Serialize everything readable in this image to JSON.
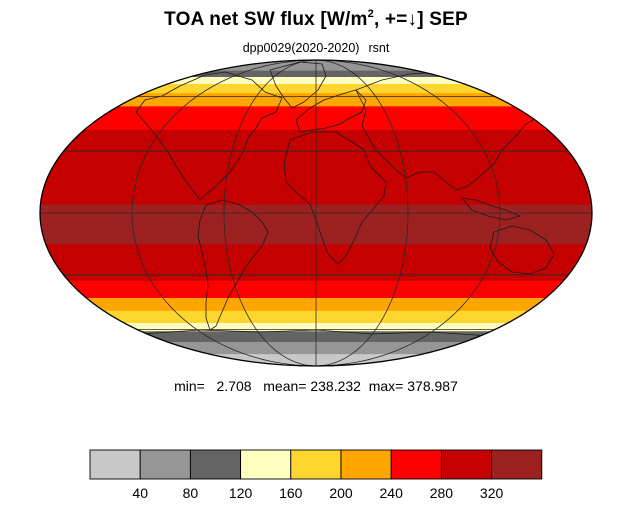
{
  "title": {
    "prefix": "TOA net SW flux [W/m",
    "exponent": "2",
    "middle": ", +=",
    "arrow": "↓",
    "suffix": "]  SEP"
  },
  "subtitle": {
    "run": "dpp0029(2020-2020)",
    "variable": "rsnt"
  },
  "stats": {
    "min_label": "min=",
    "min": "2.708",
    "mean_label": "mean=",
    "mean": "238.232",
    "max_label": "max=",
    "max": "378.987"
  },
  "map_data": {
    "projection": "mollweide",
    "central_longitude": 0,
    "graticule_longitudes": [
      -180,
      -120,
      -60,
      0,
      60,
      120,
      180
    ],
    "graticule_latitudes": [
      -60,
      -30,
      0,
      30,
      60
    ],
    "zonal_profile": [
      {
        "lat": 90,
        "value": 50
      },
      {
        "lat": 80,
        "value": 70
      },
      {
        "lat": 75,
        "value": 100
      },
      {
        "lat": 70,
        "value": 150
      },
      {
        "lat": 65,
        "value": 180
      },
      {
        "lat": 60,
        "value": 215
      },
      {
        "lat": 55,
        "value": 235
      },
      {
        "lat": 50,
        "value": 255
      },
      {
        "lat": 45,
        "value": 265
      },
      {
        "lat": 40,
        "value": 285
      },
      {
        "lat": 30,
        "value": 300
      },
      {
        "lat": 20,
        "value": 310
      },
      {
        "lat": 10,
        "value": 305
      },
      {
        "lat": 0,
        "value": 330
      },
      {
        "lat": -10,
        "value": 325
      },
      {
        "lat": -20,
        "value": 315
      },
      {
        "lat": -30,
        "value": 295
      },
      {
        "lat": -35,
        "value": 270
      },
      {
        "lat": -40,
        "value": 250
      },
      {
        "lat": -45,
        "value": 225
      },
      {
        "lat": -50,
        "value": 195
      },
      {
        "lat": -55,
        "value": 165
      },
      {
        "lat": -60,
        "value": 130
      },
      {
        "lat": -65,
        "value": 95
      },
      {
        "lat": -70,
        "value": 65
      },
      {
        "lat": -80,
        "value": 30
      },
      {
        "lat": -90,
        "value": 15
      }
    ],
    "colorbar": {
      "levels": [
        40,
        80,
        120,
        160,
        200,
        240,
        280,
        320
      ],
      "tick_labels": [
        "40",
        "80",
        "120",
        "160",
        "200",
        "240",
        "280",
        "320"
      ],
      "colors": [
        "#c8c8c8",
        "#969696",
        "#646464",
        "#ffffc0",
        "#ffd630",
        "#ffa600",
        "#ff0000",
        "#c40000",
        "#9c2121"
      ]
    }
  }
}
